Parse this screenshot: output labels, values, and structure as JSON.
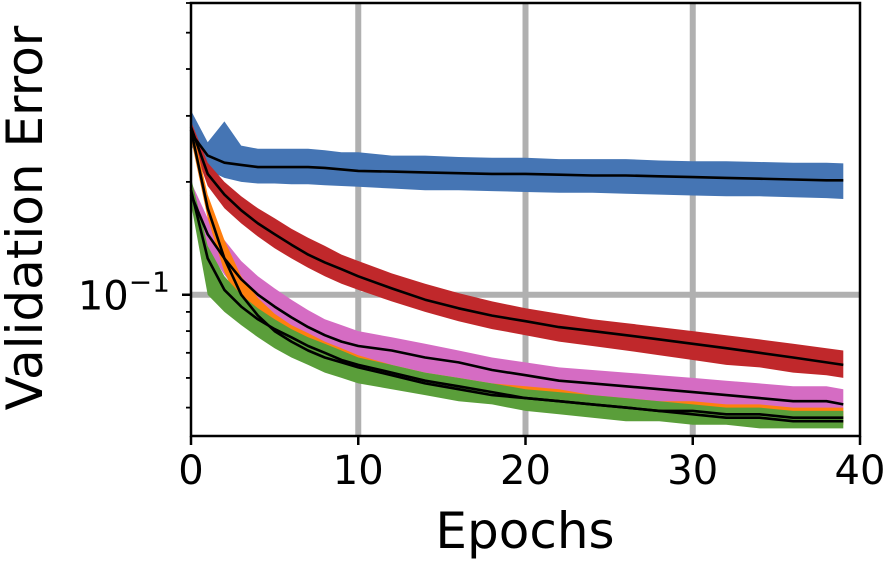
{
  "chart_data": {
    "type": "line",
    "title": "",
    "xlabel": "Epochs",
    "ylabel": "Validation Error",
    "xlim": [
      0,
      40
    ],
    "ylim": [
      0.042,
      0.6
    ],
    "yscale": "log",
    "grid": true,
    "x_ticks": [
      0,
      10,
      20,
      30,
      40
    ],
    "x_tick_labels": [
      "0",
      "10",
      "20",
      "30",
      "40"
    ],
    "y_ticks": [
      0.1
    ],
    "y_tick_labels_base": [
      "10"
    ],
    "y_tick_labels_exp": [
      "−1"
    ],
    "series": [
      {
        "color": "#4575b4",
        "x": [
          0,
          1,
          2,
          3,
          4,
          5,
          6,
          7,
          8,
          9,
          10,
          12,
          14,
          16,
          18,
          20,
          22,
          24,
          26,
          28,
          30,
          32,
          34,
          36,
          38,
          39
        ],
        "mean": [
          0.27,
          0.235,
          0.225,
          0.222,
          0.219,
          0.219,
          0.219,
          0.219,
          0.218,
          0.216,
          0.214,
          0.213,
          0.212,
          0.211,
          0.21,
          0.21,
          0.209,
          0.208,
          0.208,
          0.207,
          0.206,
          0.205,
          0.204,
          0.203,
          0.202,
          0.202
        ],
        "upper": [
          0.31,
          0.255,
          0.29,
          0.25,
          0.245,
          0.245,
          0.245,
          0.245,
          0.243,
          0.24,
          0.24,
          0.235,
          0.235,
          0.233,
          0.232,
          0.232,
          0.23,
          0.23,
          0.23,
          0.228,
          0.227,
          0.227,
          0.226,
          0.225,
          0.225,
          0.224
        ],
        "lower": [
          0.25,
          0.215,
          0.205,
          0.2,
          0.198,
          0.198,
          0.197,
          0.197,
          0.196,
          0.195,
          0.194,
          0.192,
          0.19,
          0.19,
          0.189,
          0.188,
          0.187,
          0.187,
          0.186,
          0.185,
          0.184,
          0.183,
          0.183,
          0.182,
          0.181,
          0.18
        ]
      },
      {
        "color": "#c0282b",
        "x": [
          0,
          1,
          2,
          3,
          4,
          5,
          6,
          7,
          8,
          9,
          10,
          12,
          14,
          16,
          18,
          20,
          22,
          24,
          26,
          28,
          30,
          32,
          34,
          36,
          38,
          39
        ],
        "mean": [
          0.28,
          0.21,
          0.185,
          0.168,
          0.155,
          0.145,
          0.136,
          0.128,
          0.122,
          0.117,
          0.112,
          0.104,
          0.097,
          0.092,
          0.088,
          0.085,
          0.082,
          0.08,
          0.078,
          0.076,
          0.074,
          0.072,
          0.07,
          0.068,
          0.066,
          0.065
        ],
        "upper": [
          0.29,
          0.225,
          0.2,
          0.183,
          0.17,
          0.16,
          0.15,
          0.142,
          0.135,
          0.128,
          0.123,
          0.114,
          0.107,
          0.101,
          0.096,
          0.092,
          0.089,
          0.086,
          0.084,
          0.082,
          0.08,
          0.078,
          0.076,
          0.074,
          0.072,
          0.071
        ],
        "lower": [
          0.26,
          0.195,
          0.17,
          0.155,
          0.143,
          0.133,
          0.125,
          0.118,
          0.112,
          0.107,
          0.103,
          0.096,
          0.09,
          0.085,
          0.081,
          0.078,
          0.075,
          0.073,
          0.071,
          0.069,
          0.067,
          0.065,
          0.064,
          0.062,
          0.061,
          0.06
        ]
      },
      {
        "color": "#d56cc3",
        "x": [
          0,
          1,
          2,
          3,
          4,
          5,
          6,
          7,
          8,
          9,
          10,
          12,
          14,
          16,
          18,
          20,
          22,
          24,
          26,
          28,
          30,
          32,
          34,
          36,
          38,
          39
        ],
        "mean": [
          0.185,
          0.145,
          0.125,
          0.11,
          0.1,
          0.093,
          0.087,
          0.082,
          0.078,
          0.075,
          0.073,
          0.071,
          0.068,
          0.066,
          0.063,
          0.061,
          0.059,
          0.058,
          0.057,
          0.056,
          0.055,
          0.054,
          0.053,
          0.052,
          0.052,
          0.051
        ],
        "upper": [
          0.2,
          0.16,
          0.14,
          0.123,
          0.112,
          0.104,
          0.097,
          0.091,
          0.086,
          0.083,
          0.08,
          0.077,
          0.074,
          0.071,
          0.068,
          0.066,
          0.064,
          0.063,
          0.062,
          0.061,
          0.06,
          0.059,
          0.058,
          0.057,
          0.057,
          0.056
        ],
        "lower": [
          0.17,
          0.132,
          0.113,
          0.099,
          0.091,
          0.085,
          0.079,
          0.075,
          0.072,
          0.069,
          0.067,
          0.065,
          0.062,
          0.06,
          0.058,
          0.056,
          0.054,
          0.053,
          0.052,
          0.051,
          0.05,
          0.049,
          0.048,
          0.048,
          0.047,
          0.047
        ]
      },
      {
        "color": "#ff7f0e",
        "x": [
          0,
          1,
          2,
          3,
          4,
          5,
          6,
          7,
          8,
          9,
          10,
          12,
          14,
          16,
          18,
          20,
          22,
          24,
          26,
          28,
          30,
          32,
          34,
          36,
          38,
          39
        ],
        "mean": [
          0.275,
          0.17,
          0.125,
          0.1,
          0.088,
          0.08,
          0.075,
          0.071,
          0.068,
          0.066,
          0.064,
          0.061,
          0.058,
          0.056,
          0.054,
          0.053,
          0.052,
          0.051,
          0.05,
          0.049,
          0.049,
          0.048,
          0.048,
          0.047,
          0.047,
          0.047
        ],
        "upper": [
          0.29,
          0.185,
          0.14,
          0.112,
          0.098,
          0.089,
          0.083,
          0.079,
          0.075,
          0.072,
          0.069,
          0.065,
          0.062,
          0.06,
          0.058,
          0.057,
          0.056,
          0.054,
          0.053,
          0.052,
          0.052,
          0.051,
          0.051,
          0.05,
          0.05,
          0.05
        ],
        "lower": [
          0.26,
          0.16,
          0.115,
          0.092,
          0.081,
          0.074,
          0.07,
          0.066,
          0.064,
          0.062,
          0.06,
          0.058,
          0.055,
          0.053,
          0.052,
          0.051,
          0.05,
          0.049,
          0.048,
          0.047,
          0.046,
          0.046,
          0.045,
          0.045,
          0.045,
          0.045
        ]
      },
      {
        "color": "#5a9e3a",
        "x": [
          0,
          1,
          2,
          3,
          4,
          5,
          6,
          7,
          8,
          9,
          10,
          12,
          14,
          16,
          18,
          20,
          22,
          24,
          26,
          28,
          30,
          32,
          34,
          36,
          38,
          39
        ],
        "mean": [
          0.19,
          0.125,
          0.103,
          0.093,
          0.086,
          0.081,
          0.077,
          0.073,
          0.07,
          0.067,
          0.065,
          0.062,
          0.059,
          0.057,
          0.055,
          0.053,
          0.052,
          0.051,
          0.05,
          0.049,
          0.048,
          0.047,
          0.047,
          0.046,
          0.046,
          0.046
        ],
        "upper": [
          0.205,
          0.135,
          0.112,
          0.1,
          0.092,
          0.086,
          0.081,
          0.077,
          0.074,
          0.071,
          0.068,
          0.065,
          0.062,
          0.06,
          0.058,
          0.056,
          0.055,
          0.054,
          0.053,
          0.052,
          0.051,
          0.05,
          0.05,
          0.049,
          0.049,
          0.049
        ],
        "lower": [
          0.175,
          0.1,
          0.09,
          0.083,
          0.077,
          0.072,
          0.068,
          0.065,
          0.062,
          0.06,
          0.058,
          0.056,
          0.054,
          0.052,
          0.051,
          0.049,
          0.048,
          0.047,
          0.046,
          0.046,
          0.045,
          0.045,
          0.044,
          0.044,
          0.044,
          0.044
        ]
      }
    ]
  }
}
